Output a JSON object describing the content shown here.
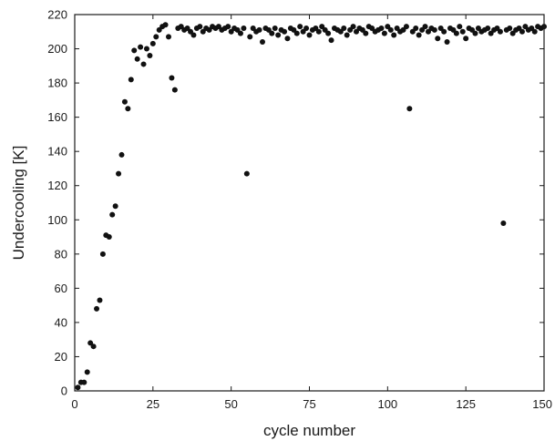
{
  "chart_data": {
    "type": "scatter",
    "title": "",
    "xlabel": "cycle number",
    "ylabel": "Undercooling [K]",
    "xlim": [
      0,
      150
    ],
    "ylim": [
      0,
      220
    ],
    "xticks": [
      0,
      25,
      50,
      75,
      100,
      125,
      150
    ],
    "yticks": [
      0,
      20,
      40,
      60,
      80,
      100,
      120,
      140,
      160,
      180,
      200,
      220
    ],
    "grid": false,
    "legend": "none",
    "marker_color": "#111111",
    "series": [
      {
        "name": "",
        "points": [
          [
            1,
            2
          ],
          [
            2,
            5
          ],
          [
            3,
            5
          ],
          [
            4,
            11
          ],
          [
            5,
            28
          ],
          [
            6,
            26
          ],
          [
            7,
            48
          ],
          [
            8,
            53
          ],
          [
            9,
            80
          ],
          [
            10,
            91
          ],
          [
            11,
            90
          ],
          [
            12,
            103
          ],
          [
            13,
            108
          ],
          [
            14,
            127
          ],
          [
            15,
            138
          ],
          [
            16,
            169
          ],
          [
            17,
            165
          ],
          [
            18,
            182
          ],
          [
            19,
            199
          ],
          [
            20,
            194
          ],
          [
            21,
            201
          ],
          [
            22,
            191
          ],
          [
            23,
            200
          ],
          [
            24,
            196
          ],
          [
            25,
            203
          ],
          [
            26,
            207
          ],
          [
            27,
            211
          ],
          [
            28,
            213
          ],
          [
            29,
            214
          ],
          [
            30,
            207
          ],
          [
            31,
            183
          ],
          [
            32,
            176
          ],
          [
            33,
            212
          ],
          [
            34,
            213
          ],
          [
            35,
            211
          ],
          [
            36,
            212
          ],
          [
            37,
            210
          ],
          [
            38,
            208
          ],
          [
            39,
            212
          ],
          [
            40,
            213
          ],
          [
            41,
            210
          ],
          [
            42,
            212
          ],
          [
            43,
            211
          ],
          [
            44,
            213
          ],
          [
            45,
            212
          ],
          [
            46,
            213
          ],
          [
            47,
            211
          ],
          [
            48,
            212
          ],
          [
            49,
            213
          ],
          [
            50,
            210
          ],
          [
            51,
            212
          ],
          [
            52,
            211
          ],
          [
            53,
            209
          ],
          [
            54,
            212
          ],
          [
            55,
            127
          ],
          [
            56,
            207
          ],
          [
            57,
            212
          ],
          [
            58,
            210
          ],
          [
            59,
            211
          ],
          [
            60,
            204
          ],
          [
            61,
            212
          ],
          [
            62,
            211
          ],
          [
            63,
            209
          ],
          [
            64,
            212
          ],
          [
            65,
            208
          ],
          [
            66,
            211
          ],
          [
            67,
            210
          ],
          [
            68,
            206
          ],
          [
            69,
            212
          ],
          [
            70,
            211
          ],
          [
            71,
            209
          ],
          [
            72,
            213
          ],
          [
            73,
            210
          ],
          [
            74,
            212
          ],
          [
            75,
            208
          ],
          [
            76,
            211
          ],
          [
            77,
            212
          ],
          [
            78,
            210
          ],
          [
            79,
            213
          ],
          [
            80,
            211
          ],
          [
            81,
            209
          ],
          [
            82,
            205
          ],
          [
            83,
            212
          ],
          [
            84,
            211
          ],
          [
            85,
            210
          ],
          [
            86,
            212
          ],
          [
            87,
            208
          ],
          [
            88,
            211
          ],
          [
            89,
            213
          ],
          [
            90,
            210
          ],
          [
            91,
            212
          ],
          [
            92,
            211
          ],
          [
            93,
            209
          ],
          [
            94,
            213
          ],
          [
            95,
            212
          ],
          [
            96,
            210
          ],
          [
            97,
            211
          ],
          [
            98,
            212
          ],
          [
            99,
            209
          ],
          [
            100,
            213
          ],
          [
            101,
            211
          ],
          [
            102,
            208
          ],
          [
            103,
            212
          ],
          [
            104,
            210
          ],
          [
            105,
            211
          ],
          [
            106,
            213
          ],
          [
            107,
            165
          ],
          [
            108,
            210
          ],
          [
            109,
            212
          ],
          [
            110,
            208
          ],
          [
            111,
            211
          ],
          [
            112,
            213
          ],
          [
            113,
            210
          ],
          [
            114,
            212
          ],
          [
            115,
            211
          ],
          [
            116,
            206
          ],
          [
            117,
            212
          ],
          [
            118,
            210
          ],
          [
            119,
            204
          ],
          [
            120,
            212
          ],
          [
            121,
            211
          ],
          [
            122,
            209
          ],
          [
            123,
            213
          ],
          [
            124,
            210
          ],
          [
            125,
            206
          ],
          [
            126,
            212
          ],
          [
            127,
            211
          ],
          [
            128,
            209
          ],
          [
            129,
            212
          ],
          [
            130,
            210
          ],
          [
            131,
            211
          ],
          [
            132,
            212
          ],
          [
            133,
            209
          ],
          [
            134,
            211
          ],
          [
            135,
            212
          ],
          [
            136,
            210
          ],
          [
            137,
            98
          ],
          [
            138,
            211
          ],
          [
            139,
            212
          ],
          [
            140,
            209
          ],
          [
            141,
            211
          ],
          [
            142,
            212
          ],
          [
            143,
            210
          ],
          [
            144,
            213
          ],
          [
            145,
            211
          ],
          [
            146,
            212
          ],
          [
            147,
            210
          ],
          [
            148,
            213
          ],
          [
            149,
            212
          ],
          [
            150,
            213
          ]
        ]
      }
    ]
  }
}
